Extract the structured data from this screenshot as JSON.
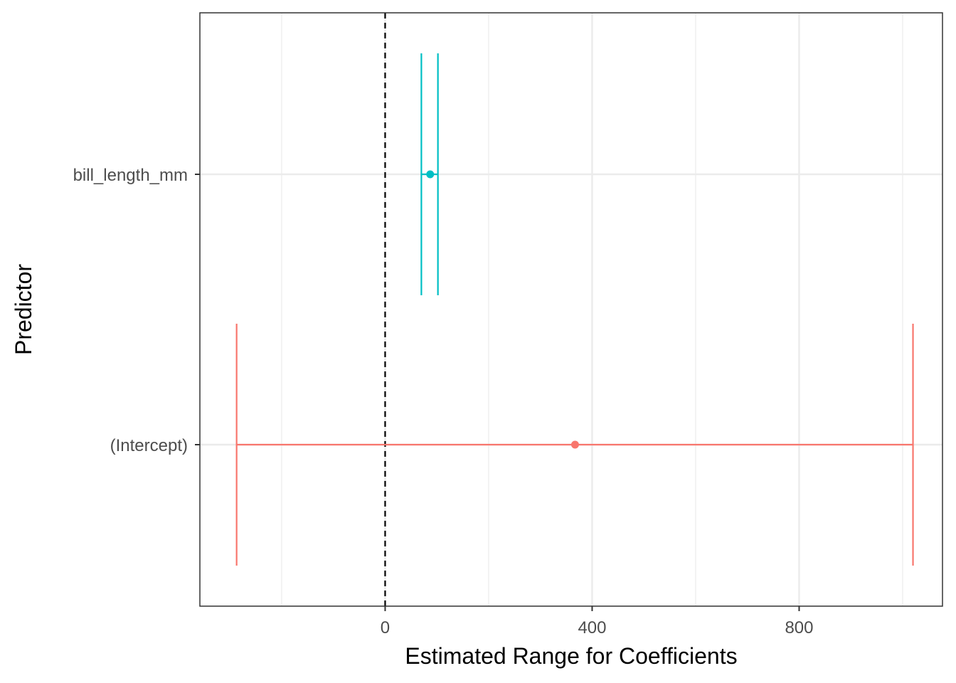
{
  "chart_data": {
    "type": "errorbar",
    "orientation": "horizontal",
    "xlabel": "Estimated Range for Coefficients",
    "ylabel": "Predictor",
    "xlim": [
      -358,
      1077
    ],
    "x_ticks": [
      0,
      400,
      800
    ],
    "x_tick_labels": [
      "0",
      "400",
      "800"
    ],
    "x_minor_ticks": [
      -200,
      200,
      600,
      1000
    ],
    "reference_line": {
      "x": 0,
      "style": "dashed",
      "color": "#000000"
    },
    "grid": true,
    "legend": "none",
    "categories": [
      "bill_length_mm",
      "(Intercept)"
    ],
    "series": [
      {
        "category": "bill_length_mm",
        "estimate": 87,
        "low": 70,
        "high": 102,
        "color": "#00BFC4"
      },
      {
        "category": "(Intercept)",
        "estimate": 367,
        "low": -287,
        "high": 1020,
        "color": "#F8766D"
      }
    ]
  }
}
